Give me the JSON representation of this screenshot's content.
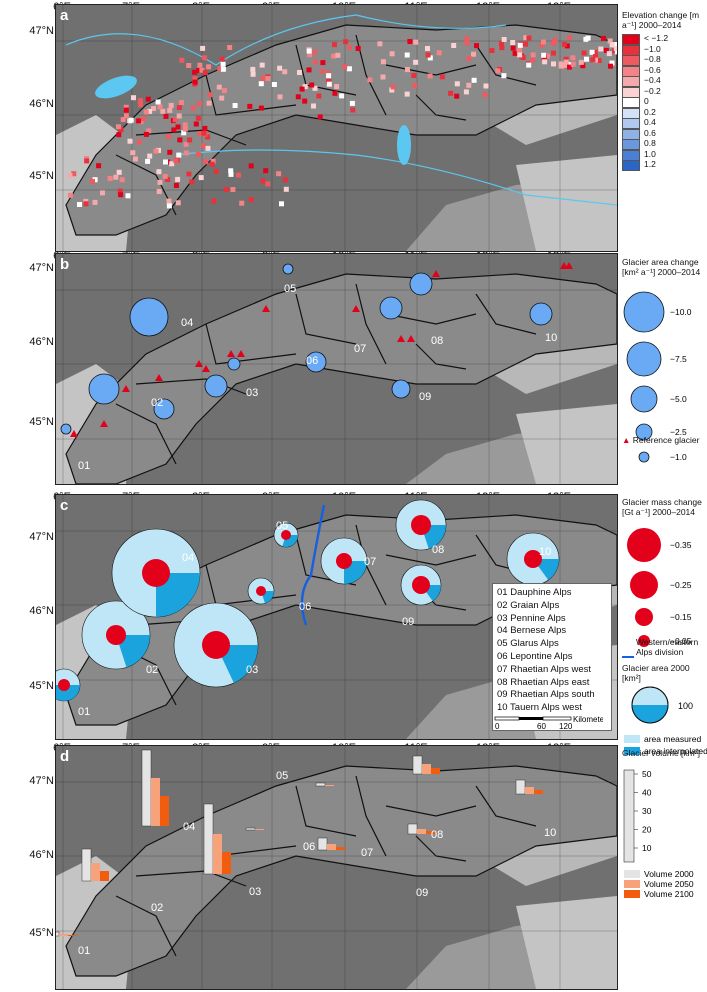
{
  "latitudes": [
    "47°N",
    "46°N",
    "45°N"
  ],
  "longitudes": [
    "6°E",
    "7°E",
    "8°E",
    "9°E",
    "10°E",
    "11°E",
    "12°E",
    "13°E"
  ],
  "panels": {
    "a": {
      "label": "a",
      "legend_title": "Elevation change [m a⁻¹] 2000–2014",
      "legend_items": [
        {
          "label": "< −1.2",
          "color": "#e3001b"
        },
        {
          "label": "−1.0",
          "color": "#e8313b"
        },
        {
          "label": "−0.8",
          "color": "#ee5a5f"
        },
        {
          "label": "−0.6",
          "color": "#f28386"
        },
        {
          "label": "−0.4",
          "color": "#f6a9ab"
        },
        {
          "label": "−0.2",
          "color": "#fad2d3"
        },
        {
          "label": "0",
          "color": "#ffffff"
        },
        {
          "label": "0.2",
          "color": "#d4e2f5"
        },
        {
          "label": "0.4",
          "color": "#b0c9ee"
        },
        {
          "label": "0.6",
          "color": "#8fb2e6"
        },
        {
          "label": "0.8",
          "color": "#6a98de"
        },
        {
          "label": "1.0",
          "color": "#4a80d4"
        },
        {
          "label": "1.2",
          "color": "#2a66c8"
        }
      ]
    },
    "b": {
      "label": "b",
      "legend_title": "Glacier area change [km² a⁻¹] 2000–2014",
      "size_legend": [
        "−10.0",
        "−7.5",
        "−5.0",
        "−2.5",
        "−1.0"
      ],
      "reference_label": "Reference glacier",
      "region_labels": [
        "01",
        "02",
        "03",
        "04",
        "05",
        "06",
        "07",
        "08",
        "09",
        "10"
      ]
    },
    "c": {
      "label": "c",
      "legend_title": "Glacier mass change [Gt a⁻¹] 2000–2014",
      "size_legend": [
        "−0.35",
        "−0.25",
        "−0.15",
        "−0.05"
      ],
      "division_label": "Western/eastern Alps division",
      "area_title": "Glacier area 2000 [km²]",
      "area_value": "100",
      "measured_label": "area measured",
      "interpolated_label": "area interpolated",
      "scale_ticks": [
        "0",
        "60",
        "120"
      ],
      "scale_unit": "Kilometer",
      "region_names": [
        "01 Dauphine Alps",
        "02 Graian Alps",
        "03 Pennine Alps",
        "04 Bernese Alps",
        "05 Glarus Alps",
        "06 Lepontine Alps",
        "07 Rhaetian Alps west",
        "08 Rhaetian Alps east",
        "09 Rhaetian Alps south",
        "10 Tauern Alps west"
      ]
    },
    "d": {
      "label": "d",
      "legend_title": "Glacier volume [km³]",
      "axis_ticks": [
        "50",
        "40",
        "30",
        "20",
        "10"
      ],
      "series_labels": [
        "Volume 2000",
        "Volume 2050",
        "Volume 2100"
      ]
    }
  },
  "colors": {
    "relief": "#707070",
    "lowland": "#c4c4c4",
    "glacier": "#a8dcf0",
    "water": "#5cc7f0",
    "red": "#e3001b",
    "area_circle": "#6aaaf5",
    "measured": "#bfe6f7",
    "interpolated": "#1aa3dc",
    "vol2000": "#e4e4e4",
    "vol2050": "#f7a27a",
    "vol2100": "#f25c0f"
  }
}
